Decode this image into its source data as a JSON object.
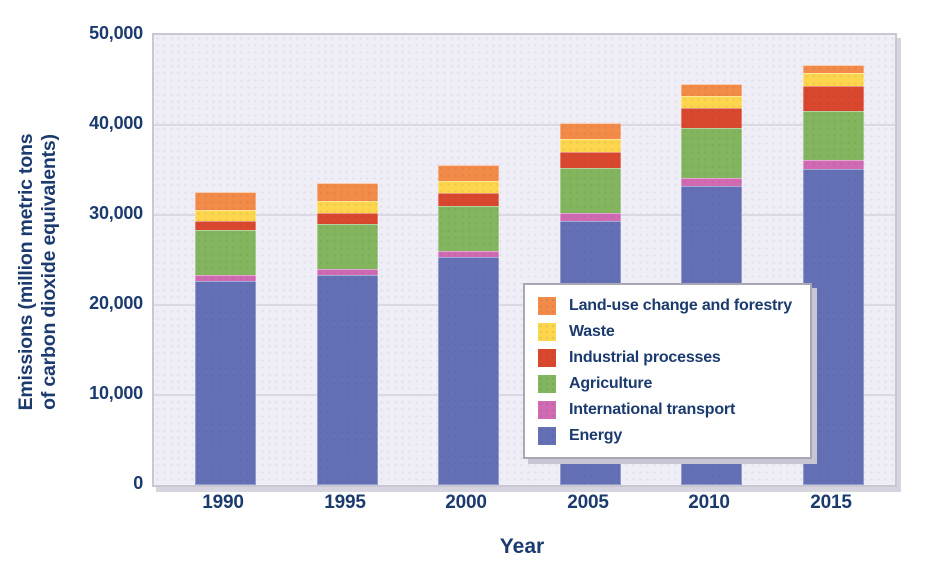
{
  "chart_meta": {
    "y_axis_title_line1": "Emissions (million metric tons",
    "y_axis_title_line2": "of carbon dioxide equivalents)"
  },
  "chart_data": {
    "type": "bar",
    "stacked": true,
    "title": "",
    "xlabel": "Year",
    "ylabel": "Emissions (million metric tons of carbon dioxide equivalents)",
    "categories": [
      "1990",
      "1995",
      "2000",
      "2005",
      "2010",
      "2015"
    ],
    "series": [
      {
        "name": "Energy",
        "color": "#6470b5",
        "values": [
          22700,
          23300,
          25300,
          29300,
          33200,
          35100
        ]
      },
      {
        "name": "International transport",
        "color": "#d06ab2",
        "values": [
          600,
          700,
          700,
          900,
          900,
          1000
        ]
      },
      {
        "name": "Agriculture",
        "color": "#82b55e",
        "values": [
          5000,
          5000,
          5000,
          5000,
          5600,
          5500
        ]
      },
      {
        "name": "Industrial processes",
        "color": "#d9482e",
        "values": [
          1000,
          1200,
          1400,
          1800,
          2200,
          2700
        ]
      },
      {
        "name": "Waste",
        "color": "#fdd64d",
        "values": [
          1300,
          1400,
          1400,
          1500,
          1300,
          1500
        ]
      },
      {
        "name": "Land-use change and forestry",
        "color": "#f28a48",
        "values": [
          2000,
          2000,
          1800,
          1700,
          1400,
          900
        ]
      }
    ],
    "stack_order_bottom_to_top": [
      "Energy",
      "International transport",
      "Agriculture",
      "Industrial processes",
      "Waste",
      "Land-use change and forestry"
    ],
    "legend_order_top_to_bottom": [
      "Land-use change and forestry",
      "Waste",
      "Industrial processes",
      "Agriculture",
      "International transport",
      "Energy"
    ],
    "legend_position": "inside-middle-right",
    "ylim": [
      0,
      50000
    ],
    "ytick_interval": 10000,
    "ytick_labels": [
      "0",
      "10,000",
      "20,000",
      "30,000",
      "40,000",
      "50,000"
    ],
    "grid": "horizontal"
  },
  "colors": {
    "text_navy": "#1b3a6e",
    "plot_background": "#efedf5",
    "gridline": "#dbd8e3",
    "plot_border": "#c9c7d3",
    "legend_border": "#a9a7b3",
    "outer_background": "#ffffff"
  }
}
